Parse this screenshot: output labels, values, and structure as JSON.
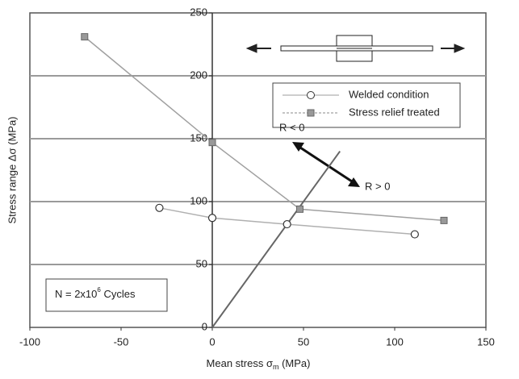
{
  "chart_data": {
    "type": "line",
    "xlabel": {
      "text": "Mean stress σ",
      "sub": "m",
      "after": "  (MPa)"
    },
    "ylabel": "Stress range Δσ  (MPa)",
    "xlim": [
      -100,
      150
    ],
    "xticks": [
      -100,
      -50,
      0,
      50,
      100,
      150
    ],
    "ylim": [
      0,
      250
    ],
    "yticks": [
      0,
      50,
      100,
      150,
      200,
      250
    ],
    "grid": true,
    "series": [
      {
        "name": "Welded condition",
        "color": "#b0b0b0",
        "marker": "circle",
        "x": [
          -29,
          0,
          41,
          111
        ],
        "values": [
          95,
          87,
          82,
          74
        ]
      },
      {
        "name": "Stress relief treated",
        "color": "#a0a0a0",
        "marker": "square",
        "x": [
          -70,
          0,
          48,
          127
        ],
        "values": [
          231,
          147,
          94,
          85
        ]
      }
    ],
    "ratio_line": {
      "color": "#666666",
      "x": [
        0,
        70
      ],
      "values": [
        0,
        140
      ]
    },
    "annotations": {
      "r_neg": "R < 0",
      "r_pos": "R > 0",
      "cycles": {
        "text": "N = 2x10",
        "sup": "6",
        "after": "  Cycles"
      }
    }
  }
}
